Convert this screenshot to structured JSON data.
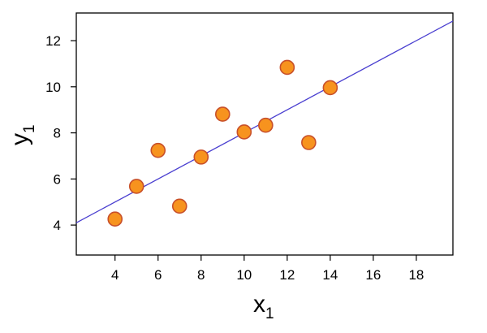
{
  "chart_data": {
    "type": "scatter",
    "xlabel": "x",
    "xlabel_subscript": "1",
    "ylabel": "y",
    "ylabel_subscript": "1",
    "xlim": [
      2.2,
      19.7
    ],
    "ylim": [
      2.7,
      13.2
    ],
    "x_ticks": [
      4,
      6,
      8,
      10,
      12,
      14,
      16,
      18
    ],
    "y_ticks": [
      4,
      6,
      8,
      10,
      12
    ],
    "grid": false,
    "points": [
      {
        "x": 10,
        "y": 8.04
      },
      {
        "x": 8,
        "y": 6.95
      },
      {
        "x": 13,
        "y": 7.58
      },
      {
        "x": 9,
        "y": 8.81
      },
      {
        "x": 11,
        "y": 8.33
      },
      {
        "x": 14,
        "y": 9.96
      },
      {
        "x": 6,
        "y": 7.24
      },
      {
        "x": 4,
        "y": 4.26
      },
      {
        "x": 12,
        "y": 10.84
      },
      {
        "x": 7,
        "y": 4.82
      },
      {
        "x": 5,
        "y": 5.68
      }
    ],
    "fit_line": {
      "intercept": 3.0,
      "slope": 0.5
    },
    "colors": {
      "point_fill": "#f7931e",
      "point_stroke": "#c8502a",
      "line": "#4a3fd0",
      "axis": "#000000"
    }
  }
}
